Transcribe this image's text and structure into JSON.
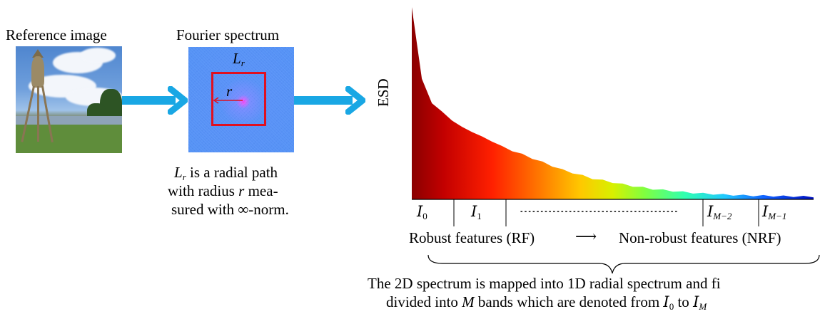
{
  "reference": {
    "title": "Reference image"
  },
  "spectrum": {
    "title": "Fourier spectrum",
    "path_label": "L",
    "path_label_sub": "r",
    "radius_label": "r",
    "caption_lines": [
      "is a radial path",
      "with radius",
      "mea-",
      "sured with ∞-norm."
    ]
  },
  "esd": {
    "ylabel": "ESD",
    "bands": [
      {
        "letter": "I",
        "sub": "0"
      },
      {
        "letter": "I",
        "sub": "1"
      },
      {
        "letter": "I",
        "sub": "M−2"
      },
      {
        "letter": "I",
        "sub": "M−1"
      }
    ],
    "left_feature": "Robust features (RF)",
    "arrow": "⟶",
    "right_feature": "Non-robust features (NRF)",
    "caption_line1": "The 2D spectrum is mapped into 1D radial spectrum and fi",
    "caption_line2_a": "divided into",
    "caption_line2_m": "M",
    "caption_line2_b": "bands which are denoted from",
    "caption_line2_i0": "I",
    "caption_line2_sub0": "0",
    "caption_line2_to": "to",
    "caption_line2_im": "I",
    "caption_line2_subm": "M"
  },
  "colors": {
    "arrow": "#19a7e4",
    "box": "#e01020"
  },
  "chart_data": {
    "type": "area",
    "title": "",
    "xlabel": "",
    "ylabel": "ESD",
    "x": [
      0,
      1,
      2,
      3,
      4,
      5,
      6,
      7,
      8,
      9,
      10,
      11,
      12,
      13,
      14,
      15,
      16,
      17,
      18,
      19,
      20,
      21,
      22,
      23,
      24,
      25,
      26,
      27,
      28,
      29,
      30,
      31,
      32,
      33,
      34,
      35,
      36,
      37,
      38,
      39,
      40
    ],
    "values": [
      1.0,
      0.62,
      0.5,
      0.45,
      0.41,
      0.37,
      0.35,
      0.32,
      0.3,
      0.27,
      0.25,
      0.23,
      0.21,
      0.19,
      0.17,
      0.15,
      0.135,
      0.12,
      0.105,
      0.095,
      0.085,
      0.075,
      0.065,
      0.058,
      0.05,
      0.045,
      0.04,
      0.035,
      0.03,
      0.027,
      0.024,
      0.021,
      0.019,
      0.017,
      0.016,
      0.015,
      0.014,
      0.013,
      0.012,
      0.011,
      0.01
    ],
    "ylim": [
      0,
      1.0
    ],
    "grid": false,
    "legend": "none"
  }
}
